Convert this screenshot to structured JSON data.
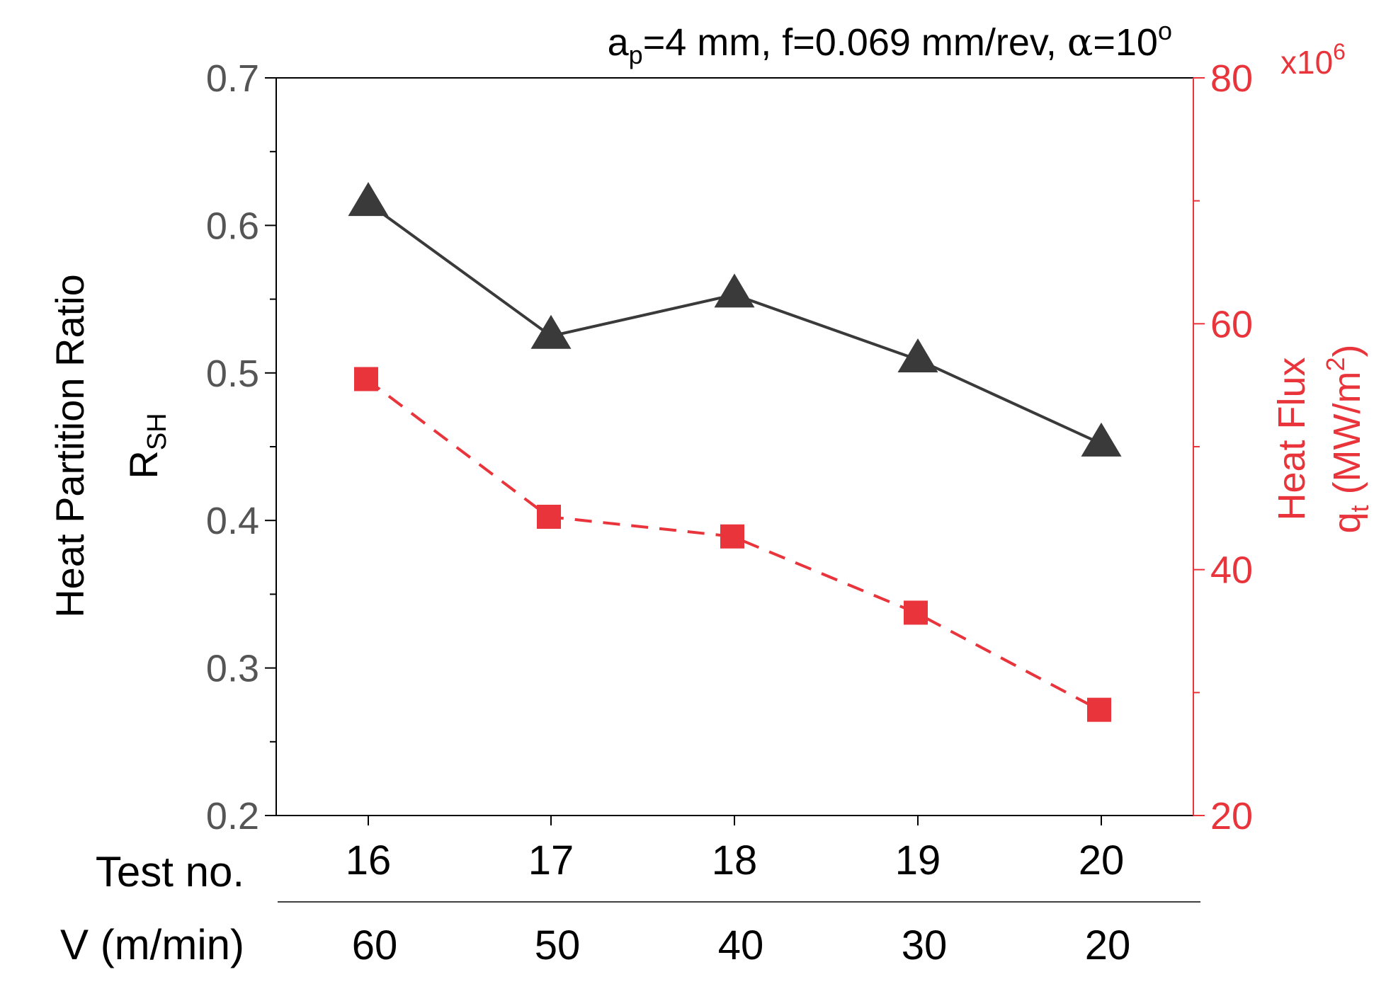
{
  "chart_data": {
    "type": "line",
    "title": "",
    "annotation": {
      "prefix": "a",
      "prefix_sub": "p",
      "text": "=4 mm, f=0.069 mm/rev, ",
      "alpha": "α",
      "alpha_value": "=10",
      "deg": "o"
    },
    "categories": [
      "16",
      "17",
      "18",
      "19",
      "20"
    ],
    "secondary_categories": [
      "60",
      "50",
      "40",
      "30",
      "20"
    ],
    "xlabel": "Test no.",
    "x2label": "V (m/min)",
    "y_left": {
      "label": "Heat Partition Ratio",
      "sublabel_main": "R",
      "sublabel_sub": "SH",
      "ylim": [
        0.2,
        0.7
      ],
      "ticks": [
        "0.2",
        "0.3",
        "0.4",
        "0.5",
        "0.6",
        "0.7"
      ],
      "color": "#000000",
      "tick_color": "#555555"
    },
    "y_right": {
      "label": "Heat Flux",
      "sublabel_main": "q",
      "sublabel_sub": "t",
      "sublabel_unit": " (MW/m",
      "sublabel_sup": "2",
      "sublabel_close": ")",
      "ylim": [
        20,
        80
      ],
      "ticks": [
        "20",
        "40",
        "60",
        "80"
      ],
      "multiplier_prefix": "x10",
      "multiplier_exp": "6",
      "color": "#e8343a"
    },
    "series": [
      {
        "name": "Heat Partition Ratio",
        "axis": "left",
        "marker": "triangle",
        "line": "solid",
        "color": "#3a3a3a",
        "values": [
          0.615,
          0.525,
          0.553,
          0.509,
          0.452
        ]
      },
      {
        "name": "Heat Flux",
        "axis": "right",
        "marker": "square",
        "line": "dashed",
        "color": "#e8343a",
        "values": [
          55.5,
          44.3,
          42.7,
          36.5,
          28.6
        ]
      }
    ],
    "grid": false
  }
}
